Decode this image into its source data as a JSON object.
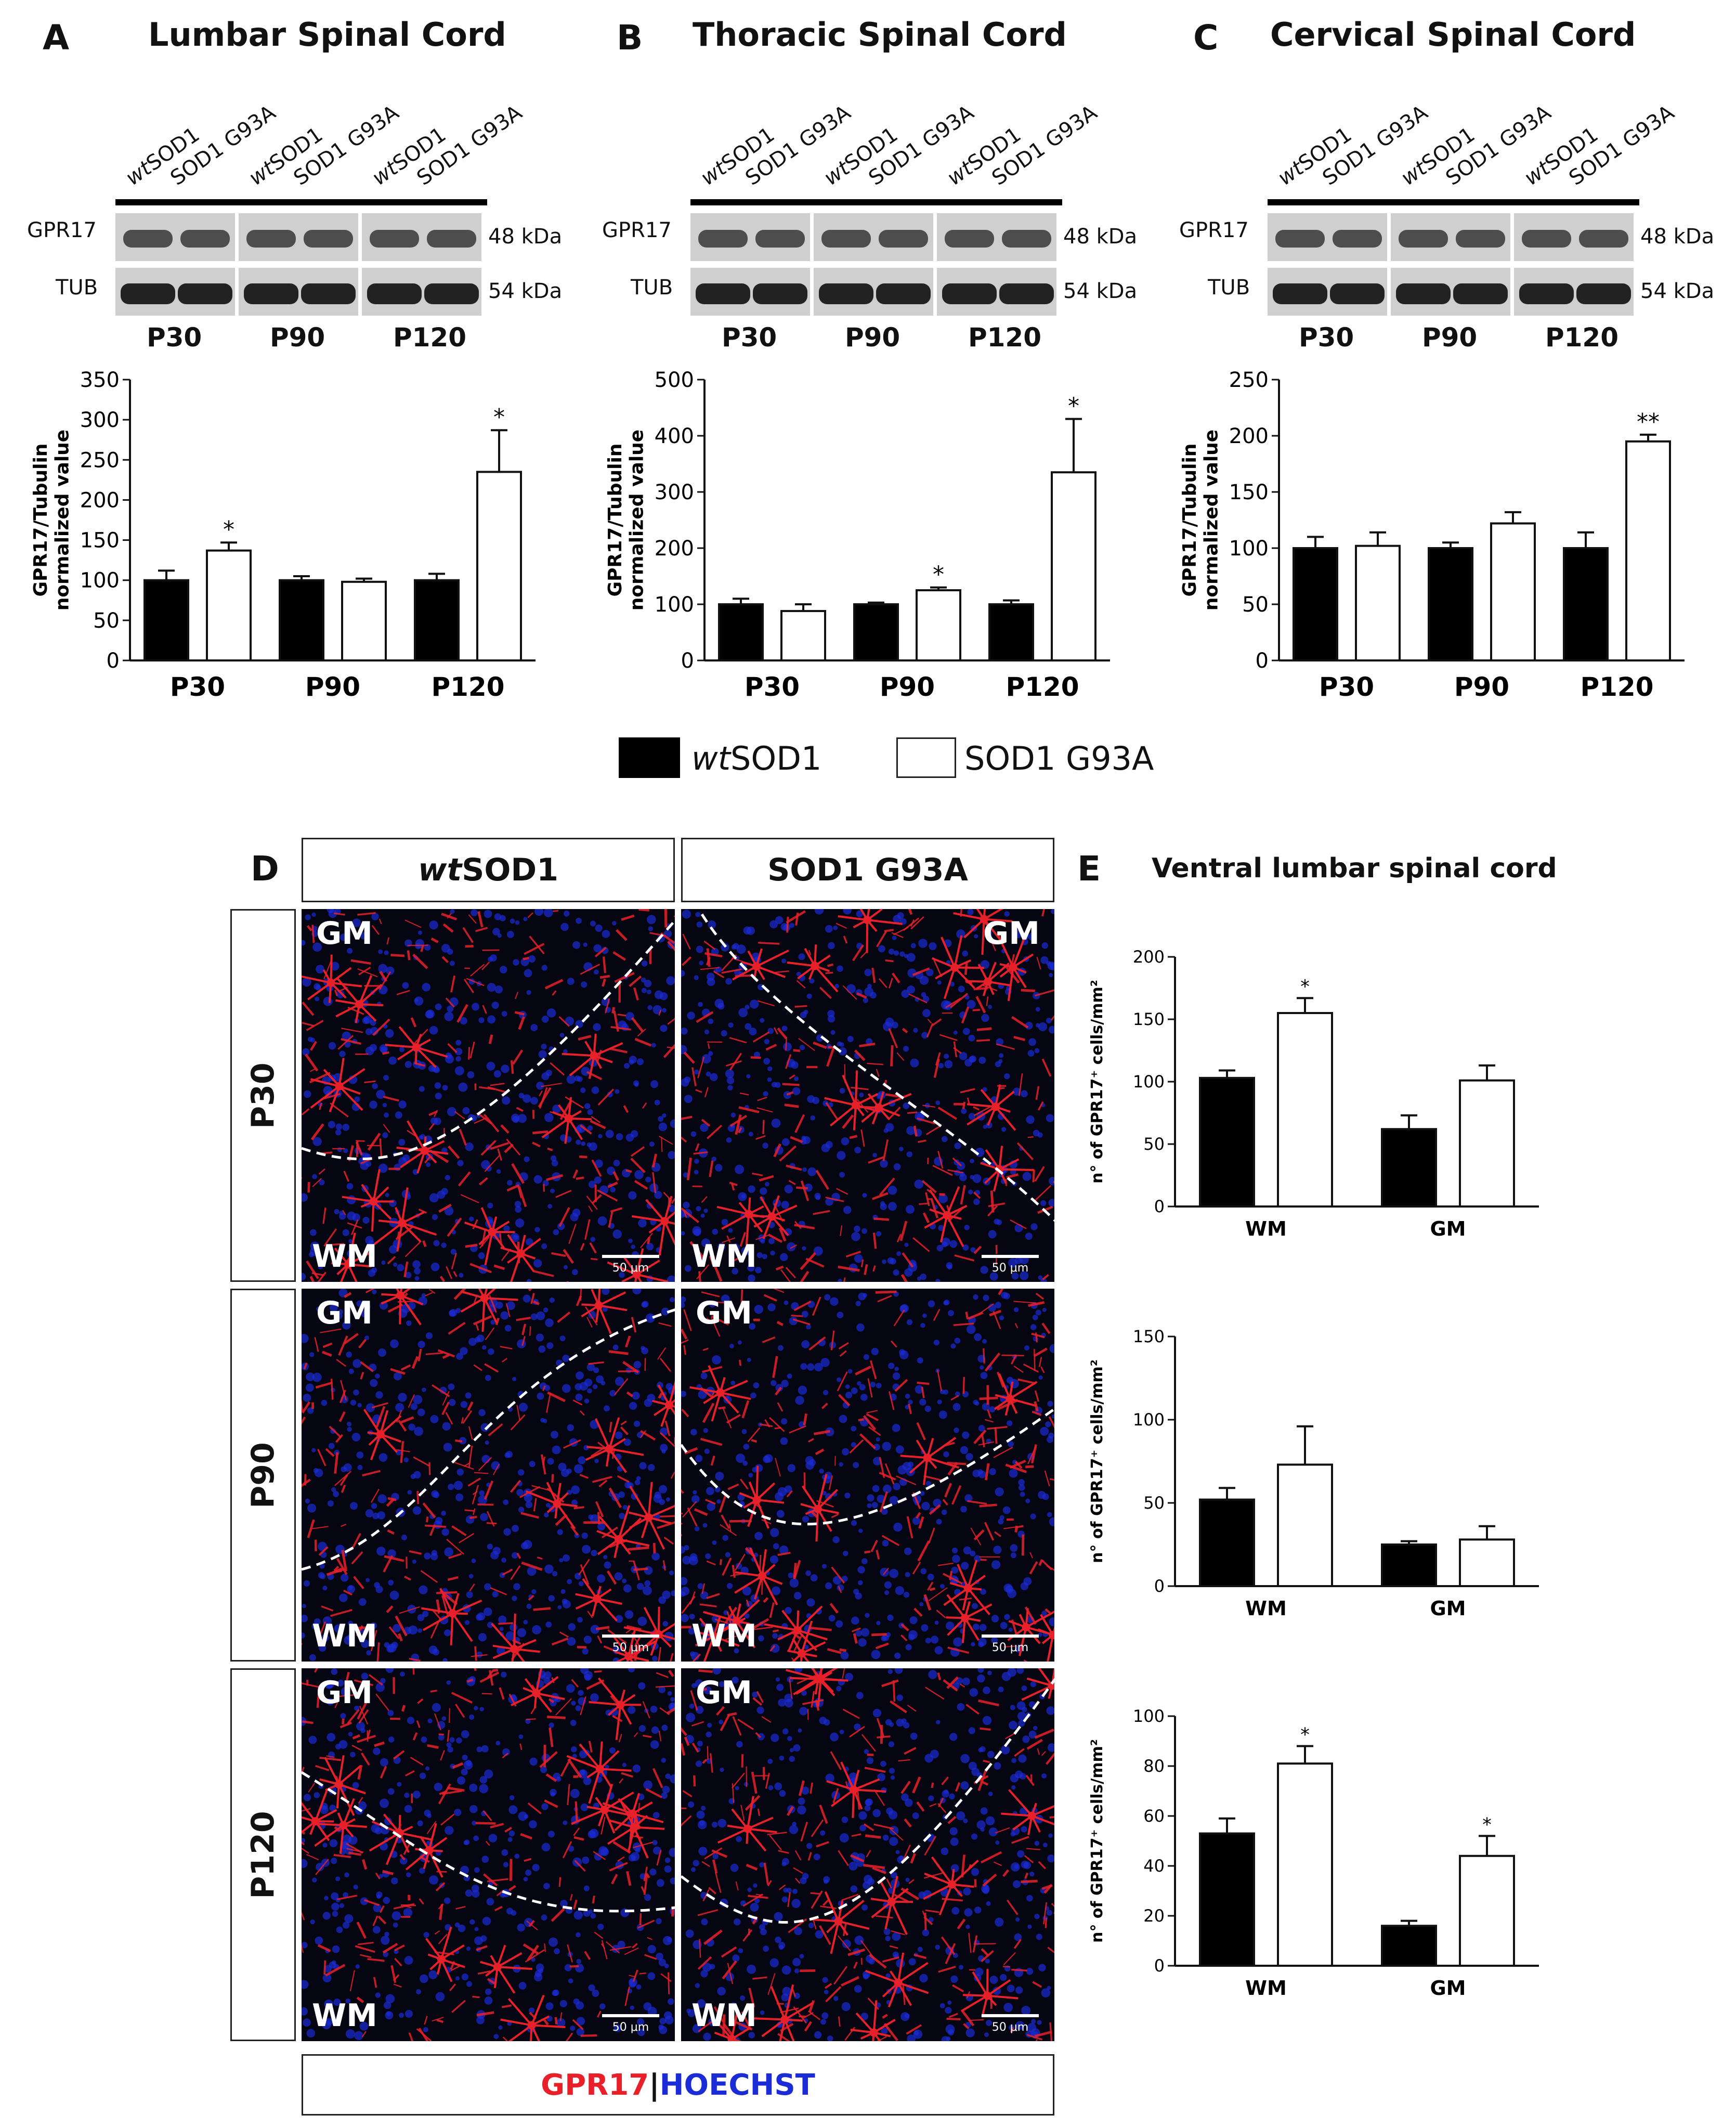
{
  "panels": {
    "A": {
      "letter": "A",
      "title": "Lumbar Spinal Cord"
    },
    "B": {
      "letter": "B",
      "title": "Thoracic Spinal Cord"
    },
    "C": {
      "letter": "C",
      "title": "Cervical Spinal Cord"
    },
    "D": {
      "letter": "D"
    },
    "E": {
      "letter": "E",
      "title": "Ventral lumbar spinal cord"
    }
  },
  "western": {
    "lane_wt": "SOD1",
    "lane_wt_prefix": "wt",
    "lane_mut": "SOD1 G93A",
    "gpr17": "GPR17",
    "tub": "TUB",
    "kda48": "48 kDa",
    "kda54": "54 kDa",
    "ages": [
      "P30",
      "P90",
      "P120"
    ]
  },
  "legend": {
    "wt_prefix": "wt",
    "wt": "SOD1",
    "mut": "SOD1 G93A",
    "wt_color": "#000000",
    "mut_color": "#ffffff"
  },
  "micro": {
    "col_wt_prefix": "wt",
    "col_wt": "SOD1",
    "col_mut": "SOD1 G93A",
    "rows": [
      "P30",
      "P90",
      "P120"
    ],
    "gm": "GM",
    "wm": "WM",
    "scalebar": "50 μm",
    "footer_red": "GPR17",
    "footer_sep": "|",
    "footer_blue": "HOECHST",
    "red": "#e8202a",
    "blue": "#1b2bd6"
  },
  "chart_data": [
    {
      "id": "A",
      "type": "bar",
      "categories": [
        "P30",
        "P90",
        "P120"
      ],
      "ylabel": "GPR17/Tubulin normalized value",
      "ylim": [
        0,
        350
      ],
      "yticks": [
        0,
        50,
        100,
        150,
        200,
        250,
        300,
        350
      ],
      "series": [
        {
          "name": "wtSOD1",
          "values": [
            100,
            100,
            100
          ],
          "err": [
            12,
            5,
            8
          ]
        },
        {
          "name": "SOD1 G93A",
          "values": [
            137,
            98,
            235
          ],
          "err": [
            10,
            4,
            52
          ]
        }
      ],
      "annotations": [
        {
          "category": "P30",
          "series": 1,
          "text": "*"
        },
        {
          "category": "P120",
          "series": 1,
          "text": "*"
        }
      ]
    },
    {
      "id": "B",
      "type": "bar",
      "categories": [
        "P30",
        "P90",
        "P120"
      ],
      "ylabel": "GPR17/Tubulin normalized value",
      "ylim": [
        0,
        500
      ],
      "yticks": [
        0,
        100,
        200,
        300,
        400,
        500
      ],
      "series": [
        {
          "name": "wtSOD1",
          "values": [
            100,
            100,
            100
          ],
          "err": [
            10,
            3,
            7
          ]
        },
        {
          "name": "SOD1 G93A",
          "values": [
            88,
            125,
            335
          ],
          "err": [
            12,
            5,
            95
          ]
        }
      ],
      "annotations": [
        {
          "category": "P90",
          "series": 1,
          "text": "*"
        },
        {
          "category": "P120",
          "series": 1,
          "text": "*"
        }
      ]
    },
    {
      "id": "C",
      "type": "bar",
      "categories": [
        "P30",
        "P90",
        "P120"
      ],
      "ylabel": "GPR17/Tubulin normalized value",
      "ylim": [
        0,
        250
      ],
      "yticks": [
        0,
        50,
        100,
        150,
        200,
        250
      ],
      "series": [
        {
          "name": "wtSOD1",
          "values": [
            100,
            100,
            100
          ],
          "err": [
            10,
            5,
            14
          ]
        },
        {
          "name": "SOD1 G93A",
          "values": [
            102,
            122,
            195
          ],
          "err": [
            12,
            10,
            6
          ]
        }
      ],
      "annotations": [
        {
          "category": "P120",
          "series": 1,
          "text": "**"
        }
      ]
    },
    {
      "id": "E1",
      "type": "bar",
      "categories": [
        "WM",
        "GM"
      ],
      "ylabel": "n° of GPR17⁺ cells/mm²",
      "ylim": [
        0,
        200
      ],
      "yticks": [
        0,
        50,
        100,
        150,
        200
      ],
      "series": [
        {
          "name": "wtSOD1",
          "values": [
            103,
            62
          ],
          "err": [
            6,
            11
          ]
        },
        {
          "name": "SOD1 G93A",
          "values": [
            155,
            101
          ],
          "err": [
            12,
            12
          ]
        }
      ],
      "annotations": [
        {
          "category": "WM",
          "series": 1,
          "text": "*"
        }
      ]
    },
    {
      "id": "E2",
      "type": "bar",
      "categories": [
        "WM",
        "GM"
      ],
      "ylabel": "n° of GPR17⁺ cells/mm²",
      "ylim": [
        0,
        150
      ],
      "yticks": [
        0,
        50,
        100,
        150
      ],
      "series": [
        {
          "name": "wtSOD1",
          "values": [
            52,
            25
          ],
          "err": [
            7,
            2
          ]
        },
        {
          "name": "SOD1 G93A",
          "values": [
            73,
            28
          ],
          "err": [
            23,
            8
          ]
        }
      ],
      "annotations": []
    },
    {
      "id": "E3",
      "type": "bar",
      "categories": [
        "WM",
        "GM"
      ],
      "ylabel": "n° of GPR17⁺ cells/mm²",
      "ylim": [
        0,
        100
      ],
      "yticks": [
        0,
        20,
        40,
        60,
        80,
        100
      ],
      "series": [
        {
          "name": "wtSOD1",
          "values": [
            53,
            16
          ],
          "err": [
            6,
            2
          ]
        },
        {
          "name": "SOD1 G93A",
          "values": [
            81,
            44
          ],
          "err": [
            7,
            8
          ]
        }
      ],
      "annotations": [
        {
          "category": "WM",
          "series": 1,
          "text": "*"
        },
        {
          "category": "GM",
          "series": 1,
          "text": "*"
        }
      ]
    }
  ]
}
